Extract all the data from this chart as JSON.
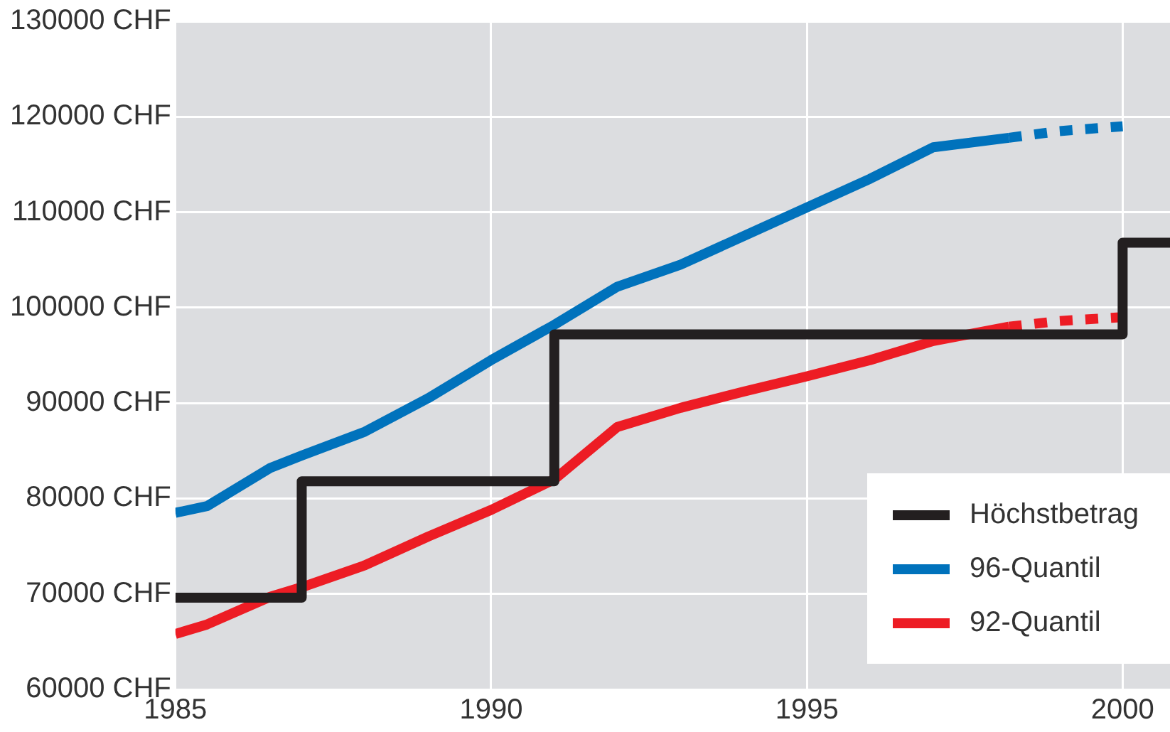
{
  "chart_data": {
    "type": "line",
    "xlim": [
      1985,
      2000.75
    ],
    "xticks": [
      1985,
      1990,
      1995,
      2000
    ],
    "ylim": [
      60000,
      130000
    ],
    "yticks": [
      {
        "value": 60000,
        "label": "60000 CHF"
      },
      {
        "value": 70000,
        "label": "70000 CHF"
      },
      {
        "value": 80000,
        "label": "80000 CHF"
      },
      {
        "value": 90000,
        "label": "90000 CHF"
      },
      {
        "value": 100000,
        "label": "100000 CHF"
      },
      {
        "value": 110000,
        "label": "110000 CHF"
      },
      {
        "value": 120000,
        "label": "120000 CHF"
      },
      {
        "value": 130000,
        "label": "130000 CHF"
      }
    ],
    "grid": true,
    "legend": "bottom right",
    "marker": "none",
    "series": [
      {
        "name": "Höchstbetrag",
        "type": "step",
        "color": "#231f20",
        "x": [
          1985,
          1987,
          1991,
          2000,
          2000.75
        ],
        "values": [
          69600,
          81800,
          97200,
          106800,
          106800
        ]
      },
      {
        "name": "96-Quantil",
        "type": "line",
        "color": "#0072bc",
        "x": [
          1985,
          1985.5,
          1986.5,
          1987,
          1988,
          1989,
          1990,
          1991,
          1992,
          1993,
          1994,
          1995,
          1996,
          1997,
          1998.2
        ],
        "values": [
          78500,
          79200,
          83200,
          84500,
          87000,
          90500,
          94500,
          98200,
          102200,
          104500,
          107500,
          110500,
          113500,
          116800,
          117800
        ]
      },
      {
        "type": "line",
        "line_style": "dotted",
        "color": "#0072bc",
        "x": [
          1998.2,
          1999,
          2000
        ],
        "values": [
          117800,
          118500,
          119000
        ]
      },
      {
        "name": "92-Quantil",
        "type": "line",
        "color": "#ed1c24",
        "x": [
          1985,
          1985.5,
          1986.5,
          1987,
          1988,
          1989,
          1990,
          1991,
          1992,
          1993,
          1994,
          1995,
          1996,
          1997,
          1998.2
        ],
        "values": [
          65800,
          66800,
          69700,
          70700,
          73000,
          76000,
          78800,
          82000,
          87500,
          89500,
          91200,
          92800,
          94500,
          96500,
          98000
        ]
      },
      {
        "type": "line",
        "line_style": "dotted",
        "color": "#ed1c24",
        "x": [
          1998.2,
          1999,
          2000
        ],
        "values": [
          98000,
          98600,
          99000
        ]
      }
    ]
  }
}
